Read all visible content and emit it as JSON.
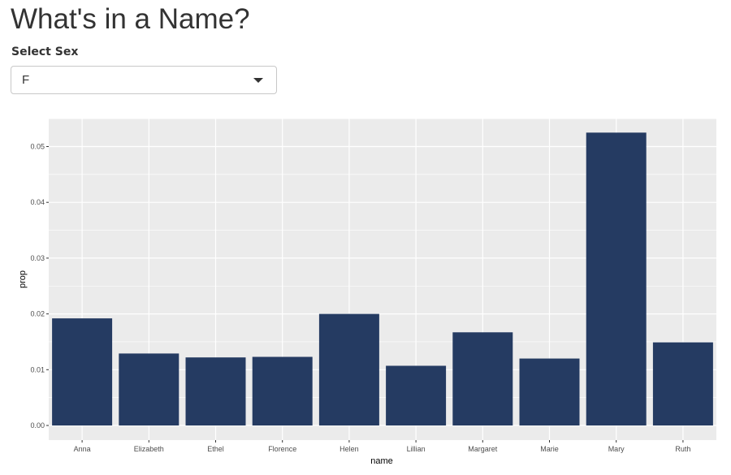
{
  "header": {
    "title": "What's in a Name?"
  },
  "controls": {
    "sex_label": "Select Sex",
    "sex_selected": "F"
  },
  "colors": {
    "bar": "#253b62",
    "panel": "#ebebeb",
    "grid": "#ffffff"
  },
  "chart_data": {
    "type": "bar",
    "categories": [
      "Anna",
      "Elizabeth",
      "Ethel",
      "Florence",
      "Helen",
      "Lillian",
      "Margaret",
      "Marie",
      "Mary",
      "Ruth"
    ],
    "values": [
      0.0192,
      0.0129,
      0.0122,
      0.0123,
      0.02,
      0.0107,
      0.0167,
      0.012,
      0.0525,
      0.0149
    ],
    "xlabel": "name",
    "ylabel": "prop",
    "ylim": [
      0,
      0.055
    ],
    "yticks": [
      0,
      0.01,
      0.02,
      0.03,
      0.04,
      0.05
    ],
    "ytick_labels": [
      "0.00",
      "0.01",
      "0.02",
      "0.03",
      "0.04",
      "0.05"
    ],
    "grid": true,
    "legend": "none"
  }
}
